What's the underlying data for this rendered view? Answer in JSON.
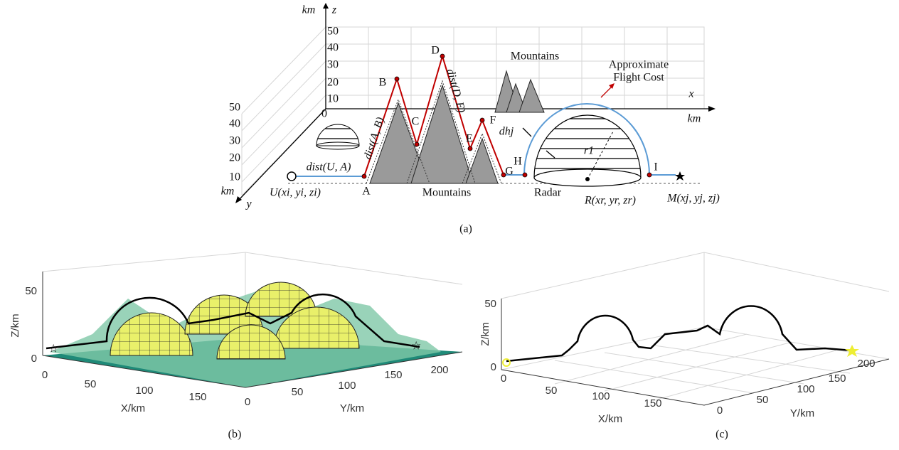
{
  "panel_a": {
    "caption": "(a)",
    "z_axis": {
      "unit": "km",
      "name": "z",
      "ticks": [
        50,
        40,
        30,
        20,
        10
      ],
      "origin": 0
    },
    "x_axis": {
      "name": "x",
      "unit": "km"
    },
    "y_axis": {
      "unit": "km",
      "name": "y",
      "ticks": [
        50,
        40,
        30,
        20,
        10
      ]
    },
    "points": [
      "A",
      "B",
      "C",
      "D",
      "E",
      "F",
      "G",
      "H",
      "I"
    ],
    "labels": {
      "mountains_front": "Mountains",
      "mountains_back": "Mountains",
      "cost_1": "Approximate",
      "cost_2": "Flight Cost",
      "radar": "Radar",
      "radar_pos": "R(xr, yr, zr)",
      "target": "M(xj, yj, zj)",
      "start": "U(xi, yi, zi)",
      "dist_ua": "dist(U, A)",
      "dist_ab": "dist(A, B)",
      "dist_de": "dist(D, E)",
      "d_hj": "dhj",
      "radius": "r1"
    }
  },
  "panel_b": {
    "caption": "(b)",
    "z_label": "Z/km",
    "z_ticks": [
      50,
      0
    ],
    "x_label": "X/km",
    "x_ticks": [
      0,
      50,
      100,
      150
    ],
    "y_label": "Y/km",
    "y_ticks": [
      0,
      50,
      100,
      150,
      200
    ]
  },
  "panel_c": {
    "caption": "(c)",
    "z_label": "Z/km",
    "z_ticks": [
      50,
      0
    ],
    "x_label": "X/km",
    "x_ticks": [
      0,
      50,
      100,
      150
    ],
    "y_label": "Y/km",
    "y_ticks": [
      0,
      50,
      100,
      150,
      200
    ]
  }
}
